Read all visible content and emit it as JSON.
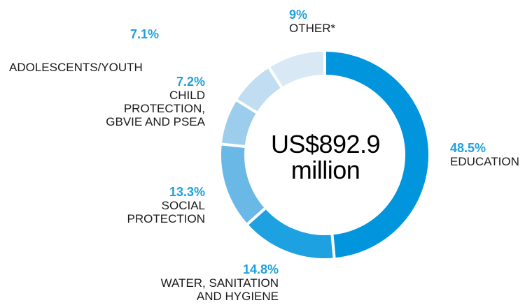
{
  "colors": {
    "education": "#0095dd",
    "wash": "#1ea1e0",
    "social": "#6ab8e6",
    "child": "#9dcdec",
    "adolescents": "#c0ddf1",
    "other": "#d8e8f4",
    "pct_text": "#1fa0df",
    "label_text": "#1a1a1a"
  },
  "center": {
    "text": "US$892.9\nmillion"
  },
  "chart_data": {
    "type": "pie",
    "donut": true,
    "total_label": "US$892.9 million",
    "start": "top",
    "direction": "clockwise",
    "slices": [
      {
        "key": "education",
        "label": "EDUCATION",
        "percent_label": "48.5%",
        "value": 48.5
      },
      {
        "key": "wash",
        "label": "WATER, SANITATION AND HYGIENE",
        "percent_label": "14.8%",
        "value": 14.8
      },
      {
        "key": "social",
        "label": "SOCIAL PROTECTION",
        "percent_label": "13.3%",
        "value": 13.3
      },
      {
        "key": "child",
        "label": "CHILD PROTECTION, GBVIE AND PSEA",
        "percent_label": "7.2%",
        "value": 7.2
      },
      {
        "key": "adolescents",
        "label": "ADOLESCENTS/YOUTH",
        "percent_label": "7.1%",
        "value": 7.1
      },
      {
        "key": "other",
        "label": "OTHER*",
        "percent_label": "9%",
        "value": 9
      }
    ]
  },
  "labels": {
    "education": {
      "pct": "48.5%",
      "name": "EDUCATION"
    },
    "wash": {
      "pct": "14.8%",
      "name": "WATER, SANITATION\nAND HYGIENE"
    },
    "social": {
      "pct": "13.3%",
      "name": "SOCIAL\nPROTECTION"
    },
    "child": {
      "pct": "7.2%",
      "name": "CHILD\nPROTECTION,\nGBVIE AND PSEA"
    },
    "adolescents": {
      "pct": "7.1%",
      "name": "ADOLESCENTS/YOUTH"
    },
    "other": {
      "pct": "9%",
      "name": "OTHER*"
    }
  }
}
